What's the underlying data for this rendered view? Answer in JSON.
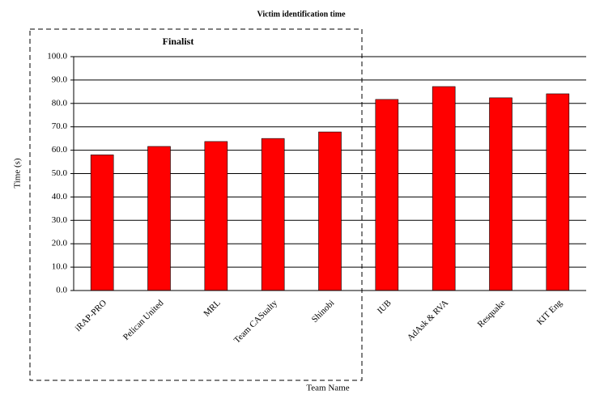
{
  "chart_data": {
    "type": "bar",
    "title": "Victim identification time",
    "annotation": "Finalist",
    "y_label": "Time (s)",
    "x_label": "Team Name",
    "categories": [
      "iRAP-PRO",
      "Pelican United",
      "MRL",
      "Team CASualty",
      "Shinobi",
      "IUB",
      "AdAsk & RVA",
      "Resquake",
      "KIT Eng"
    ],
    "values": [
      58,
      61.6,
      63.7,
      65,
      67.8,
      81.7,
      87.2,
      82.4,
      84.1
    ],
    "color": "#ff0000",
    "ylim": [
      0,
      100
    ],
    "yticks": [
      {
        "value": 0,
        "label": "0.0"
      },
      {
        "value": 10,
        "label": "10.0"
      },
      {
        "value": 20,
        "label": "20.0"
      },
      {
        "value": 30,
        "label": "30.0"
      },
      {
        "value": 40,
        "label": "40.0"
      },
      {
        "value": 50,
        "label": "50.0"
      },
      {
        "value": 60,
        "label": "60.0"
      },
      {
        "value": 70,
        "label": "70.0"
      },
      {
        "value": 80,
        "label": "80.0"
      },
      {
        "value": 90,
        "label": "90.0"
      },
      {
        "value": 100,
        "label": "100.0"
      }
    ],
    "grid": true
  }
}
